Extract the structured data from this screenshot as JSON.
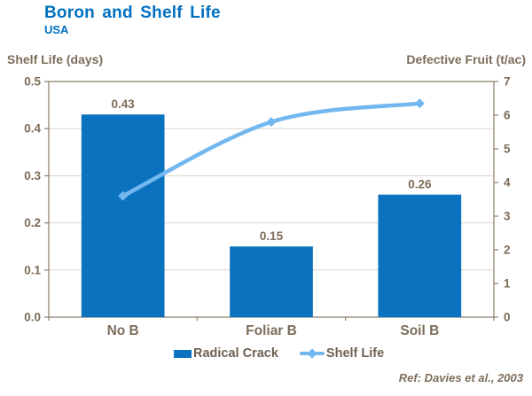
{
  "header": {
    "title": "Boron and Shelf Life",
    "subtitle": "USA"
  },
  "chart_data": {
    "type": "bar+line-combo",
    "categories": [
      "No B",
      "Foliar B",
      "Soil B"
    ],
    "series": [
      {
        "name": "Radical Crack",
        "type": "bar",
        "axis": "left",
        "values": [
          0.43,
          0.15,
          0.26
        ],
        "data_labels": [
          "0.43",
          "0.15",
          "0.26"
        ]
      },
      {
        "name": "Shelf Life",
        "type": "line",
        "axis": "right",
        "values": [
          3.6,
          5.8,
          6.35
        ]
      }
    ],
    "left_axis": {
      "title": "Shelf Life (days)",
      "min": 0,
      "max": 0.5,
      "tick_labels": [
        "0.0",
        "0.1",
        "0.2",
        "0.3",
        "0.4",
        "0.5"
      ],
      "tick_values": [
        0,
        0.1,
        0.2,
        0.3,
        0.4,
        0.5
      ]
    },
    "right_axis": {
      "title": "Defective Fruit (t/ac)",
      "min": 0,
      "max": 7,
      "tick_labels": [
        "0",
        "1",
        "2",
        "3",
        "4",
        "5",
        "6",
        "7"
      ],
      "tick_values": [
        0,
        1,
        2,
        3,
        4,
        5,
        6,
        7
      ]
    },
    "grid": true,
    "legend_position": "bottom",
    "legend": [
      {
        "label": "Radical Crack",
        "marker": "bar-swatch"
      },
      {
        "label": "Shelf Life",
        "marker": "line-diamond"
      }
    ]
  },
  "footer": {
    "ref": "Ref: Davies et al., 2003"
  },
  "colors": {
    "title": "#0070C0",
    "bar": "#0A72BE",
    "line": "#72B7F0",
    "axis_text": "#7C6D59",
    "legend_text": "#6E6155",
    "grid": "#DAD3C9",
    "axis_line": "#8B7D6B",
    "ref_text": "#7D6E5B"
  }
}
